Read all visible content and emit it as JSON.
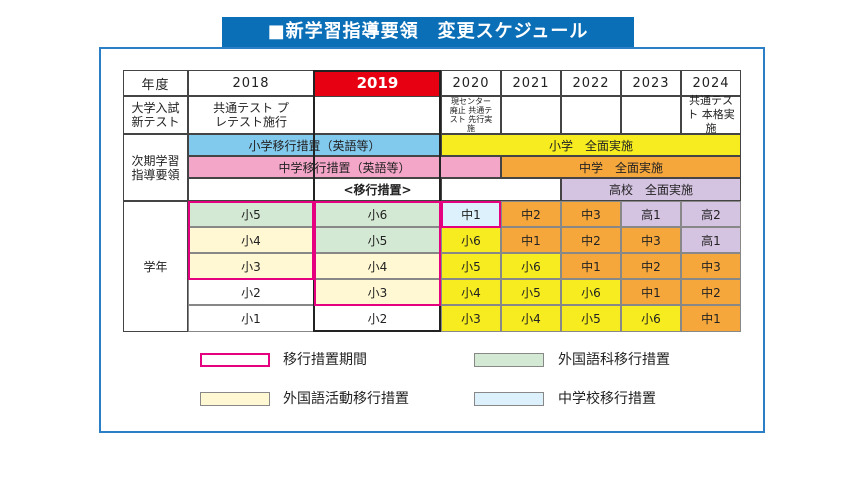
{
  "title": "■新学習指導要領　変更スケジュール",
  "header": {
    "label": "年度",
    "years": [
      "2018",
      "2019",
      "2020",
      "2021",
      "2022",
      "2023",
      "2024"
    ]
  },
  "exam_row": {
    "label": "大学入試 新テスト",
    "y2018": "共通テスト プレテスト施行",
    "y2020": "現センター廃止 共通テスト 先行実施",
    "y2024": "共通テスト 本格実施"
  },
  "guideline_row": {
    "label": "次期学習 指導要領",
    "elem_transition": "小学移行措置（英語等）",
    "elem_full": "小学　全面実施",
    "junior_transition": "中学移行措置（英語等）",
    "junior_full": "中学　全面実施",
    "transition_label": "<移行措置>",
    "high_full": "高校　全面実施"
  },
  "grade_label": "学年",
  "grades": [
    [
      "小5",
      "小6",
      "中1",
      "中2",
      "中3",
      "高1",
      "高2"
    ],
    [
      "小4",
      "小5",
      "小6",
      "中1",
      "中2",
      "中3",
      "高1"
    ],
    [
      "小3",
      "小4",
      "小5",
      "小6",
      "中1",
      "中2",
      "中3"
    ],
    [
      "小2",
      "小3",
      "小4",
      "小5",
      "小6",
      "中1",
      "中2"
    ],
    [
      "小1",
      "小2",
      "小3",
      "小4",
      "小5",
      "小6",
      "中1"
    ]
  ],
  "legend": {
    "transition_period": "移行措置期間",
    "foreign_subject": "外国語科移行措置",
    "foreign_activity": "外国語活動移行措置",
    "junior_transition": "中学校移行措置"
  },
  "colors": {
    "title_bg": "#0b6fb8",
    "y2019": "#e60012",
    "elementary_transition": "#82c9ee",
    "elementary_full": "#f6ec1f",
    "junior_transition": "#f3a6c8",
    "junior_full": "#f6a73c",
    "high_full": "#d5c3e2",
    "foreign_subject": "#d4e9d3",
    "foreign_activity": "#fff8d3",
    "junior_school": "#dcf1fb",
    "transition_border": "#e4007f"
  }
}
